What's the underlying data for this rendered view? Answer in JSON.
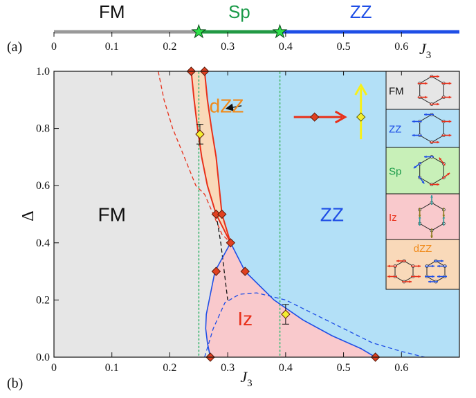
{
  "colors": {
    "fm_region": "#e6e6e6",
    "zz_region": "#b3e0f7",
    "iz_region": "#f9c9cc",
    "dzz_region": "#f9d9b9",
    "sp_region": "#c8f0b8",
    "gray_bar": "#999999",
    "green_bar": "#229944",
    "blue_bar": "#1e4ee6",
    "red": "#e8301a",
    "blue": "#1e4ee6",
    "orange_label": "#f08a1a",
    "green_label": "#1a9a48",
    "yellow": "#f7f01a",
    "dotted_line": "#5cbf86",
    "marker_red": "#e04020",
    "marker_yellow": "#f4ee30"
  },
  "panel_a": {
    "tag": "(a)",
    "xlabel": "J",
    "xlabel_sub": "3",
    "xlim": [
      0,
      0.7
    ],
    "ticks": [
      "0",
      "0.1",
      "0.2",
      "0.3",
      "0.4",
      "0.5",
      "0.6"
    ],
    "tick_values": [
      0,
      0.1,
      0.2,
      0.3,
      0.4,
      0.5,
      0.6
    ],
    "phases": [
      {
        "name": "FM",
        "from": 0,
        "to": 0.25,
        "color": "#999999",
        "label_x": 0.1,
        "label_color": "#111111"
      },
      {
        "name": "Sp",
        "from": 0.25,
        "to": 0.39,
        "color": "#229944",
        "label_x": 0.32,
        "label_color": "#1a9a48"
      },
      {
        "name": "ZZ",
        "from": 0.39,
        "to": 0.7,
        "color": "#1e4ee6",
        "label_x": 0.53,
        "label_color": "#1e4ee6"
      }
    ],
    "stars": [
      0.25,
      0.39
    ]
  },
  "chart_data": {
    "type": "scatter",
    "panel": "(b)",
    "xlabel": "J",
    "xlabel_sub": "3",
    "ylabel": "Δ",
    "xlim": [
      0,
      0.7
    ],
    "ylim": [
      0,
      1.0
    ],
    "x_ticks": [
      "0",
      "0.1",
      "0.2",
      "0.3",
      "0.4",
      "0.5",
      "0.6"
    ],
    "x_tick_values": [
      0,
      0.1,
      0.2,
      0.3,
      0.4,
      0.5,
      0.6
    ],
    "y_ticks": [
      "0.0",
      "0.2",
      "0.4",
      "0.6",
      "0.8",
      "1.0"
    ],
    "y_tick_values": [
      0,
      0.2,
      0.4,
      0.6,
      0.8,
      1.0
    ],
    "region_labels": [
      {
        "text": "FM",
        "x": 0.1,
        "y": 0.5,
        "color": "#111111"
      },
      {
        "text": "ZZ",
        "x": 0.48,
        "y": 0.5,
        "color": "#1e4ee6"
      },
      {
        "text": "Iz",
        "x": 0.33,
        "y": 0.135,
        "color": "#e8301a"
      },
      {
        "text": "dZZ",
        "x": 0.298,
        "y": 0.88,
        "color": "#f08a1a"
      }
    ],
    "red_diamonds": [
      {
        "x": 0.237,
        "y": 1.0
      },
      {
        "x": 0.26,
        "y": 1.0
      },
      {
        "x": 0.28,
        "y": 0.5
      },
      {
        "x": 0.29,
        "y": 0.5
      },
      {
        "x": 0.305,
        "y": 0.4
      },
      {
        "x": 0.28,
        "y": 0.3
      },
      {
        "x": 0.33,
        "y": 0.3
      },
      {
        "x": 0.27,
        "y": 0.0
      },
      {
        "x": 0.555,
        "y": 0.0
      }
    ],
    "yellow_diamonds": [
      {
        "x": 0.252,
        "y": 0.78,
        "err": 0.02
      },
      {
        "x": 0.4,
        "y": 0.15,
        "err": 0.02
      }
    ],
    "boundary_dzz_left": [
      [
        0.237,
        1.0
      ],
      [
        0.242,
        0.9
      ],
      [
        0.248,
        0.8
      ],
      [
        0.255,
        0.7
      ],
      [
        0.265,
        0.6
      ],
      [
        0.28,
        0.5
      ],
      [
        0.305,
        0.4
      ]
    ],
    "boundary_dzz_right": [
      [
        0.26,
        1.0
      ],
      [
        0.265,
        0.9
      ],
      [
        0.272,
        0.8
      ],
      [
        0.28,
        0.7
      ],
      [
        0.285,
        0.6
      ],
      [
        0.29,
        0.5
      ],
      [
        0.305,
        0.4
      ]
    ],
    "boundary_iz": [
      [
        0.27,
        0.0
      ],
      [
        0.265,
        0.05
      ],
      [
        0.262,
        0.1
      ],
      [
        0.263,
        0.15
      ],
      [
        0.268,
        0.2
      ],
      [
        0.278,
        0.3
      ],
      [
        0.305,
        0.4
      ],
      [
        0.33,
        0.3
      ],
      [
        0.38,
        0.2
      ],
      [
        0.43,
        0.13
      ],
      [
        0.48,
        0.075
      ],
      [
        0.53,
        0.03
      ],
      [
        0.555,
        0.0
      ]
    ],
    "dashed_red": [
      [
        0.18,
        1.0
      ],
      [
        0.19,
        0.9
      ],
      [
        0.205,
        0.8
      ],
      [
        0.225,
        0.7
      ],
      [
        0.245,
        0.6
      ],
      [
        0.26,
        0.57
      ],
      [
        0.275,
        0.5
      ],
      [
        0.29,
        0.43
      ],
      [
        0.305,
        0.4
      ]
    ],
    "dashed_black": [
      [
        0.28,
        0.5
      ],
      [
        0.288,
        0.4
      ],
      [
        0.294,
        0.3
      ],
      [
        0.3,
        0.2
      ]
    ],
    "dashed_blue": [
      [
        0.26,
        0.0
      ],
      [
        0.275,
        0.1
      ],
      [
        0.295,
        0.19
      ],
      [
        0.32,
        0.22
      ],
      [
        0.35,
        0.225
      ],
      [
        0.4,
        0.2
      ],
      [
        0.45,
        0.15
      ],
      [
        0.5,
        0.1
      ],
      [
        0.55,
        0.05
      ],
      [
        0.6,
        0.02
      ],
      [
        0.64,
        0.0
      ]
    ],
    "dotted_vertical_x": [
      0.25,
      0.39
    ],
    "arrow_annotation": {
      "from": [
        0.288,
        0.86
      ],
      "to": [
        0.273,
        0.88
      ]
    },
    "legend_spins": {
      "red_arrow": {
        "x": 0.45,
        "y": 0.84
      },
      "yellow_arrow": {
        "x": 0.53,
        "y": 0.84
      }
    },
    "insets": [
      "FM",
      "ZZ",
      "Sp",
      "Iz",
      "dZZ"
    ]
  }
}
